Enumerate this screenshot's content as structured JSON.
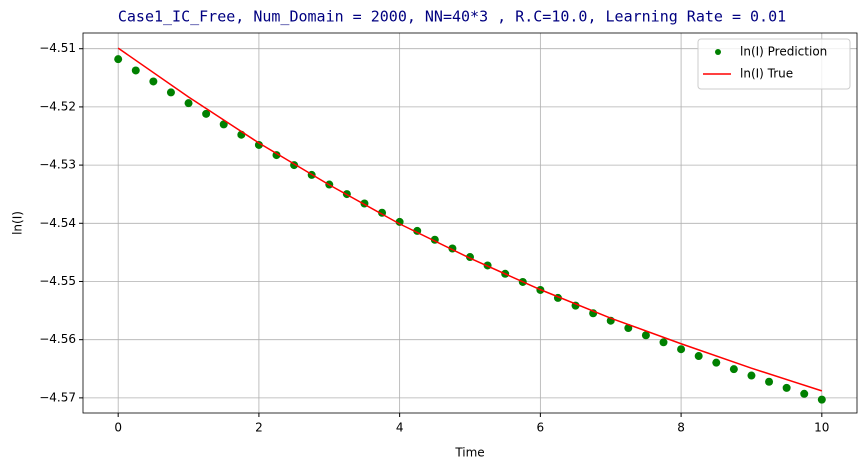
{
  "chart_data": {
    "type": "combo",
    "title": "Case1_IC_Free, Num_Domain = 2000, NN=40*3 , R.C=10.0, Learning Rate = 0.01",
    "x_label": "Time",
    "y_label": "ln(I)",
    "xlim": [
      -0.5,
      10.5
    ],
    "xticks": [
      0,
      2,
      4,
      6,
      8,
      10
    ],
    "ylim": [
      -4.5726,
      -4.5073
    ],
    "yticks": [
      {
        "value": -4.57,
        "label": "−4.57"
      },
      {
        "value": -4.56,
        "label": "−4.56"
      },
      {
        "value": -4.55,
        "label": "−4.55"
      },
      {
        "value": -4.54,
        "label": "−4.54"
      },
      {
        "value": -4.53,
        "label": "−4.53"
      },
      {
        "value": -4.52,
        "label": "−4.52"
      },
      {
        "value": -4.51,
        "label": "−4.51"
      }
    ],
    "grid": true,
    "legend": "upper right",
    "series": [
      {
        "name": "ln(I) Prediction",
        "type": "scatter",
        "color": "#008000",
        "x": [
          0,
          0.25,
          0.5,
          0.75,
          1,
          1.25,
          1.5,
          1.75,
          2,
          2.25,
          2.5,
          2.75,
          3,
          3.25,
          3.5,
          3.75,
          4,
          4.25,
          4.5,
          4.75,
          5,
          5.25,
          5.5,
          5.75,
          6,
          6.25,
          6.5,
          6.75,
          7,
          7.25,
          7.5,
          7.75,
          8,
          8.25,
          8.5,
          8.75,
          9,
          9.25,
          9.5,
          9.75,
          10
        ],
        "values": [
          -4.5118,
          -4.51374,
          -4.51563,
          -4.51751,
          -4.51936,
          -4.52119,
          -4.523,
          -4.52478,
          -4.52654,
          -4.52828,
          -4.53,
          -4.53169,
          -4.53334,
          -4.53498,
          -4.5366,
          -4.53819,
          -4.53976,
          -4.54131,
          -4.54283,
          -4.54433,
          -4.5458,
          -4.54725,
          -4.54868,
          -4.55008,
          -4.55146,
          -4.55282,
          -4.55415,
          -4.55546,
          -4.55674,
          -4.558,
          -4.55924,
          -4.56045,
          -4.56164,
          -4.56281,
          -4.56395,
          -4.56507,
          -4.56616,
          -4.56723,
          -4.56828,
          -4.5693,
          -4.5703
        ]
      },
      {
        "name": "ln(I) True",
        "type": "line",
        "color": "#ff0000",
        "x": [
          0,
          1,
          2,
          3,
          4,
          5,
          6,
          7,
          8,
          9,
          10
        ],
        "values": [
          -4.5099,
          -4.5183,
          -4.5262,
          -4.5334,
          -4.5401,
          -4.546,
          -4.5514,
          -4.5563,
          -4.5607,
          -4.5649,
          -4.5688
        ]
      }
    ]
  }
}
